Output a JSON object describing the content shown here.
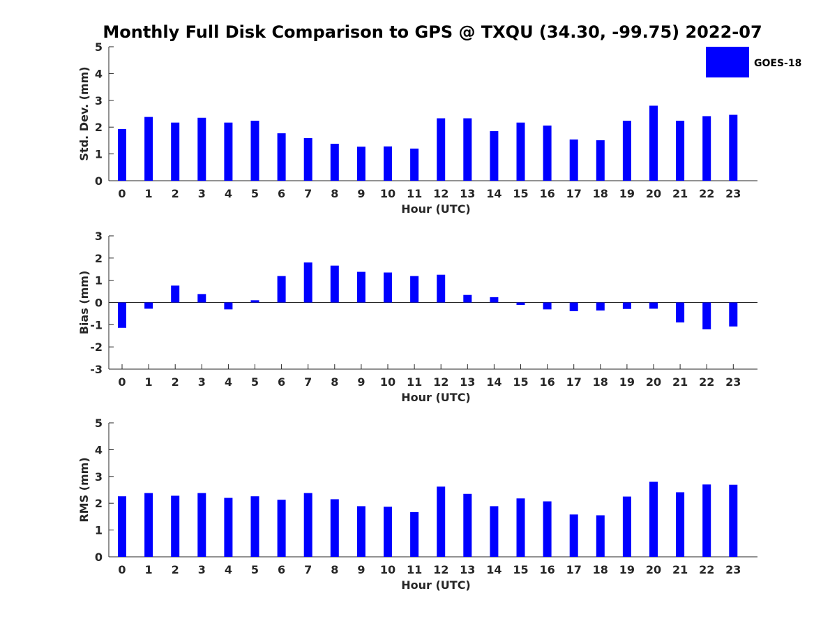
{
  "title": "Monthly Full Disk Comparison to GPS @ TXQU (34.30, -99.75) 2022-07",
  "legend": {
    "label": "GOES-18",
    "color": "#0000ff",
    "location": "top-right"
  },
  "chart_data": [
    {
      "type": "bar",
      "categories": [
        "0",
        "1",
        "2",
        "3",
        "4",
        "5",
        "6",
        "7",
        "8",
        "9",
        "10",
        "11",
        "12",
        "13",
        "14",
        "15",
        "16",
        "17",
        "18",
        "19",
        "20",
        "21",
        "22",
        "23"
      ],
      "series": [
        {
          "name": "GOES-18",
          "values": [
            1.93,
            2.38,
            2.17,
            2.35,
            2.17,
            2.24,
            1.77,
            1.59,
            1.38,
            1.27,
            1.28,
            1.2,
            2.33,
            2.33,
            1.85,
            2.17,
            2.06,
            1.54,
            1.51,
            2.24,
            2.8,
            2.24,
            2.41,
            2.46
          ]
        }
      ],
      "xlabel": "Hour (UTC)",
      "ylabel": "Std. Dev. (mm)",
      "ylim": [
        0,
        5
      ],
      "yticks": [
        "0",
        "1",
        "2",
        "3",
        "4",
        "5"
      ]
    },
    {
      "type": "bar",
      "categories": [
        "0",
        "1",
        "2",
        "3",
        "4",
        "5",
        "6",
        "7",
        "8",
        "9",
        "10",
        "11",
        "12",
        "13",
        "14",
        "15",
        "16",
        "17",
        "18",
        "19",
        "20",
        "21",
        "22",
        "23"
      ],
      "series": [
        {
          "name": "GOES-18",
          "values": [
            -1.14,
            -0.28,
            0.76,
            0.38,
            -0.31,
            0.1,
            1.19,
            1.8,
            1.66,
            1.38,
            1.35,
            1.19,
            1.25,
            0.34,
            0.24,
            -0.11,
            -0.31,
            -0.39,
            -0.36,
            -0.29,
            -0.28,
            -0.9,
            -1.21,
            -1.08
          ]
        }
      ],
      "xlabel": "Hour (UTC)",
      "ylabel": "Bias (mm)",
      "ylim": [
        -3,
        3
      ],
      "yticks": [
        "-3",
        "-2",
        "-1",
        "0",
        "1",
        "2",
        "3"
      ]
    },
    {
      "type": "bar",
      "categories": [
        "0",
        "1",
        "2",
        "3",
        "4",
        "5",
        "6",
        "7",
        "8",
        "9",
        "10",
        "11",
        "12",
        "13",
        "14",
        "15",
        "16",
        "17",
        "18",
        "19",
        "20",
        "21",
        "22",
        "23"
      ],
      "series": [
        {
          "name": "GOES-18",
          "values": [
            2.26,
            2.38,
            2.28,
            2.38,
            2.2,
            2.26,
            2.13,
            2.38,
            2.15,
            1.89,
            1.87,
            1.67,
            2.62,
            2.35,
            1.89,
            2.18,
            2.07,
            1.58,
            1.55,
            2.25,
            2.8,
            2.41,
            2.7,
            2.69
          ]
        }
      ],
      "xlabel": "Hour (UTC)",
      "ylabel": "RMS (mm)",
      "ylim": [
        0,
        5
      ],
      "yticks": [
        "0",
        "1",
        "2",
        "3",
        "4",
        "5"
      ]
    }
  ]
}
